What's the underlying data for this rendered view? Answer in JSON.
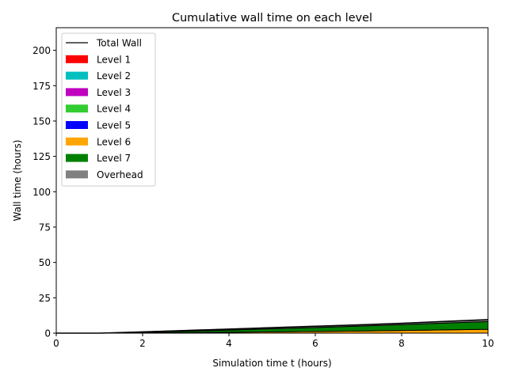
{
  "chart_data": {
    "type": "area",
    "title": "Cumulative wall time on each level",
    "xlabel": "Simulation time t (hours)",
    "ylabel": "Wall time (hours)",
    "xlim": [
      0,
      10
    ],
    "ylim": [
      0,
      216
    ],
    "xticks": [
      0,
      2,
      4,
      6,
      8,
      10
    ],
    "yticks": [
      0,
      25,
      50,
      75,
      100,
      125,
      150,
      175,
      200
    ],
    "grid": false,
    "legend_position": "top-left",
    "x": [
      0,
      1,
      2,
      3,
      4,
      5,
      6,
      7,
      8,
      9,
      10
    ],
    "total_wall": {
      "name": "Total Wall",
      "color": "#000000",
      "values": [
        0,
        0,
        0.9,
        1.9,
        2.9,
        3.9,
        4.9,
        5.9,
        7.0,
        8.3,
        9.6
      ]
    },
    "series": [
      {
        "name": "Level 1",
        "color": "#ff0000",
        "values": [
          0,
          0,
          0,
          0,
          0,
          0,
          0,
          0,
          0,
          0,
          0
        ]
      },
      {
        "name": "Level 2",
        "color": "#00bfbf",
        "values": [
          0,
          0,
          0,
          0,
          0,
          0,
          0,
          0,
          0,
          0,
          0
        ]
      },
      {
        "name": "Level 3",
        "color": "#bf00bf",
        "values": [
          0,
          0,
          0,
          0,
          0,
          0,
          0,
          0,
          0,
          0,
          0
        ]
      },
      {
        "name": "Level 4",
        "color": "#32cd32",
        "values": [
          0,
          0,
          0,
          0,
          0,
          0,
          0,
          0,
          0,
          0,
          0
        ]
      },
      {
        "name": "Level 5",
        "color": "#0000ff",
        "values": [
          0,
          0,
          0,
          0,
          0,
          0,
          0,
          0,
          0,
          0,
          0
        ]
      },
      {
        "name": "Level 6",
        "color": "#ffa500",
        "values": [
          0,
          0,
          0.2,
          0.4,
          0.6,
          0.9,
          1.2,
          1.5,
          1.9,
          2.3,
          2.7
        ]
      },
      {
        "name": "Level 7",
        "color": "#008000",
        "values": [
          0,
          0,
          0.4,
          1.0,
          1.6,
          2.2,
          2.8,
          3.5,
          4.1,
          4.8,
          5.5
        ]
      },
      {
        "name": "Overhead",
        "color": "#808080",
        "values": [
          0,
          0,
          0.3,
          0.5,
          0.7,
          0.8,
          0.9,
          0.9,
          1.0,
          1.2,
          1.4
        ]
      }
    ]
  }
}
